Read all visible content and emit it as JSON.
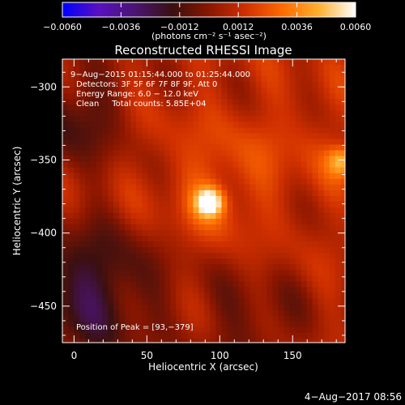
{
  "chart_data": {
    "type": "heatmap",
    "title": "Reconstructed RHESSI Image",
    "xlabel": "Heliocentric X (arcsec)",
    "ylabel": "Heliocentric Y (arcsec)",
    "xlim": [
      -8,
      186
    ],
    "ylim": [
      -475,
      -281
    ],
    "xticks": [
      0,
      50,
      100,
      150
    ],
    "yticks": [
      -300,
      -350,
      -400,
      -450
    ],
    "colorbar": {
      "range": [
        -0.006,
        0.006
      ],
      "tick_values": [
        -0.006,
        -0.0036,
        -0.0012,
        0.0012,
        0.0036,
        0.006
      ],
      "tick_labels": [
        "−0.0060",
        "−0.0036",
        "−0.0012",
        "0.0012",
        "0.0036",
        "0.0060"
      ],
      "units_label": "(photons cm⁻² s⁻¹ asec⁻²)"
    },
    "annotations": [
      "9−Aug−2015 01:15:44.000 to 01:25:44.000",
      "Detectors: 3F 5F 6F 7F 8F 9F, Att 0",
      "Energy Range: 6.0 − 12.0 keV",
      "Clean     Total counts: 5.85E+04"
    ],
    "peak_label": "Position of Peak = [93,−379]",
    "peak": {
      "x": 93,
      "y": -379,
      "value": 0.006
    },
    "secondary_peak": {
      "x": 184,
      "y": -351,
      "value": 0.003
    },
    "background_level": 0.0009,
    "footer_date": "4−Aug−2017 08:56",
    "colors": {
      "background": "#000000",
      "axes": "#ffffff",
      "colormap": [
        "#0000ff",
        "#5a10c0",
        "#4a1470",
        "#3a1010",
        "#8a1600",
        "#d03000",
        "#ff6a00",
        "#ffb030",
        "#ffffff"
      ]
    }
  }
}
